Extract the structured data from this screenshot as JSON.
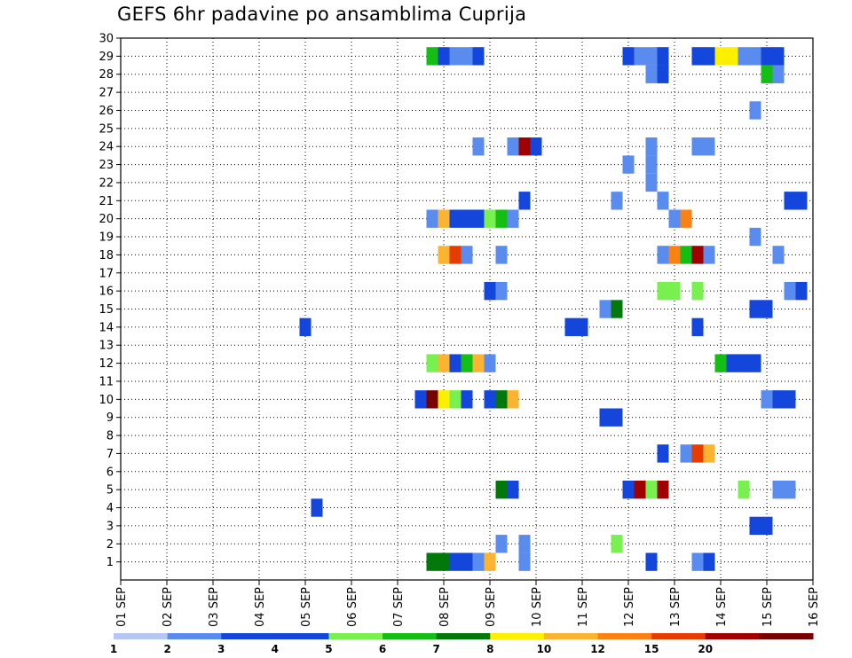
{
  "chart_data": {
    "type": "heatmap",
    "title": "GEFS 6hr padavine po ansamblima Cuprija",
    "x_ticks": [
      "01 SEP",
      "02 SEP",
      "03 SEP",
      "04 SEP",
      "05 SEP",
      "06 SEP",
      "07 SEP",
      "08 SEP",
      "09 SEP",
      "10 SEP",
      "11 SEP",
      "12 SEP",
      "13 SEP",
      "14 SEP",
      "15 SEP",
      "16 SEP"
    ],
    "y_ticks": [
      1,
      2,
      3,
      4,
      5,
      6,
      7,
      8,
      9,
      10,
      11,
      12,
      13,
      14,
      15,
      16,
      17,
      18,
      19,
      20,
      21,
      22,
      23,
      24,
      25,
      26,
      27,
      28,
      29,
      30
    ],
    "xlim": [
      "01 SEP 00h",
      "16 SEP 00h"
    ],
    "ylim": [
      0,
      30
    ],
    "grid": true,
    "legend": {
      "levels": [
        "1",
        "2",
        "3",
        "4",
        "5",
        "6",
        "7",
        "8",
        "10",
        "12",
        "15",
        "20"
      ],
      "colors": [
        "#b4c8f0",
        "#5a8cf0",
        "#1446dc",
        "#1446dc",
        "#78f050",
        "#14be14",
        "#00780a",
        "#faf000",
        "#fab432",
        "#fa8214",
        "#e63c00",
        "#a00000",
        "#780000"
      ]
    },
    "cells": [
      {
        "member": 29,
        "x": "07 SEP 18h",
        "class": 5
      },
      {
        "member": 29,
        "x": "08 SEP 00h",
        "class": 2
      },
      {
        "member": 29,
        "x": "08 SEP 06h",
        "class": 1
      },
      {
        "member": 29,
        "x": "08 SEP 12h",
        "class": 1
      },
      {
        "member": 29,
        "x": "08 SEP 18h",
        "class": 3
      },
      {
        "member": 29,
        "x": "12 SEP 00h",
        "class": 2
      },
      {
        "member": 29,
        "x": "12 SEP 06h",
        "class": 1
      },
      {
        "member": 29,
        "x": "12 SEP 12h",
        "class": 1
      },
      {
        "member": 29,
        "x": "12 SEP 18h",
        "class": 2
      },
      {
        "member": 29,
        "x": "13 SEP 12h",
        "class": 2
      },
      {
        "member": 29,
        "x": "13 SEP 18h",
        "class": 2
      },
      {
        "member": 29,
        "x": "14 SEP 00h",
        "class": 7
      },
      {
        "member": 29,
        "x": "14 SEP 06h",
        "class": 7
      },
      {
        "member": 29,
        "x": "14 SEP 12h",
        "class": 1
      },
      {
        "member": 29,
        "x": "14 SEP 18h",
        "class": 1
      },
      {
        "member": 29,
        "x": "15 SEP 00h",
        "class": 3
      },
      {
        "member": 29,
        "x": "15 SEP 06h",
        "class": 2
      },
      {
        "member": 28,
        "x": "12 SEP 12h",
        "class": 1
      },
      {
        "member": 28,
        "x": "12 SEP 18h",
        "class": 2
      },
      {
        "member": 28,
        "x": "15 SEP 00h",
        "class": 5
      },
      {
        "member": 28,
        "x": "15 SEP 06h",
        "class": 1
      },
      {
        "member": 26,
        "x": "14 SEP 18h",
        "class": 1
      },
      {
        "member": 24,
        "x": "08 SEP 18h",
        "class": 1
      },
      {
        "member": 24,
        "x": "09 SEP 12h",
        "class": 1
      },
      {
        "member": 24,
        "x": "09 SEP 18h",
        "class": 11
      },
      {
        "member": 24,
        "x": "10 SEP 00h",
        "class": 2
      },
      {
        "member": 24,
        "x": "12 SEP 12h",
        "class": 1
      },
      {
        "member": 24,
        "x": "13 SEP 12h",
        "class": 1
      },
      {
        "member": 24,
        "x": "13 SEP 18h",
        "class": 1
      },
      {
        "member": 23,
        "x": "12 SEP 00h",
        "class": 1
      },
      {
        "member": 23,
        "x": "12 SEP 12h",
        "class": 1
      },
      {
        "member": 22,
        "x": "12 SEP 12h",
        "class": 1
      },
      {
        "member": 21,
        "x": "09 SEP 18h",
        "class": 2
      },
      {
        "member": 21,
        "x": "11 SEP 18h",
        "class": 1
      },
      {
        "member": 21,
        "x": "12 SEP 18h",
        "class": 1
      },
      {
        "member": 21,
        "x": "15 SEP 12h",
        "class": 2
      },
      {
        "member": 21,
        "x": "15 SEP 18h",
        "class": 3
      },
      {
        "member": 20,
        "x": "07 SEP 18h",
        "class": 1
      },
      {
        "member": 20,
        "x": "08 SEP 00h",
        "class": 8
      },
      {
        "member": 20,
        "x": "08 SEP 06h",
        "class": 2
      },
      {
        "member": 20,
        "x": "08 SEP 12h",
        "class": 3
      },
      {
        "member": 20,
        "x": "08 SEP 18h",
        "class": 3
      },
      {
        "member": 20,
        "x": "09 SEP 00h",
        "class": 4
      },
      {
        "member": 20,
        "x": "09 SEP 06h",
        "class": 5
      },
      {
        "member": 20,
        "x": "09 SEP 12h",
        "class": 1
      },
      {
        "member": 20,
        "x": "13 SEP 00h",
        "class": 1
      },
      {
        "member": 20,
        "x": "13 SEP 06h",
        "class": 9
      },
      {
        "member": 19,
        "x": "14 SEP 18h",
        "class": 1
      },
      {
        "member": 18,
        "x": "08 SEP 00h",
        "class": 8
      },
      {
        "member": 18,
        "x": "08 SEP 06h",
        "class": 10
      },
      {
        "member": 18,
        "x": "08 SEP 12h",
        "class": 1
      },
      {
        "member": 18,
        "x": "09 SEP 06h",
        "class": 1
      },
      {
        "member": 18,
        "x": "12 SEP 18h",
        "class": 1
      },
      {
        "member": 18,
        "x": "13 SEP 00h",
        "class": 9
      },
      {
        "member": 18,
        "x": "13 SEP 06h",
        "class": 5
      },
      {
        "member": 18,
        "x": "13 SEP 12h",
        "class": 11
      },
      {
        "member": 18,
        "x": "13 SEP 18h",
        "class": 1
      },
      {
        "member": 18,
        "x": "15 SEP 06h",
        "class": 1
      },
      {
        "member": 16,
        "x": "09 SEP 00h",
        "class": 2
      },
      {
        "member": 16,
        "x": "09 SEP 06h",
        "class": 1
      },
      {
        "member": 16,
        "x": "12 SEP 18h",
        "class": 4
      },
      {
        "member": 16,
        "x": "13 SEP 00h",
        "class": 4
      },
      {
        "member": 16,
        "x": "13 SEP 12h",
        "class": 4
      },
      {
        "member": 16,
        "x": "15 SEP 12h",
        "class": 1
      },
      {
        "member": 16,
        "x": "15 SEP 18h",
        "class": 2
      },
      {
        "member": 15,
        "x": "11 SEP 12h",
        "class": 1
      },
      {
        "member": 15,
        "x": "11 SEP 18h",
        "class": 6
      },
      {
        "member": 15,
        "x": "14 SEP 18h",
        "class": 2
      },
      {
        "member": 15,
        "x": "15 SEP 00h",
        "class": 3
      },
      {
        "member": 14,
        "x": "05 SEP 00h",
        "class": 2
      },
      {
        "member": 14,
        "x": "10 SEP 18h",
        "class": 2
      },
      {
        "member": 14,
        "x": "11 SEP 00h",
        "class": 2
      },
      {
        "member": 14,
        "x": "13 SEP 12h",
        "class": 3
      },
      {
        "member": 12,
        "x": "07 SEP 18h",
        "class": 4
      },
      {
        "member": 12,
        "x": "08 SEP 00h",
        "class": 8
      },
      {
        "member": 12,
        "x": "08 SEP 06h",
        "class": 3
      },
      {
        "member": 12,
        "x": "08 SEP 12h",
        "class": 5
      },
      {
        "member": 12,
        "x": "08 SEP 18h",
        "class": 8
      },
      {
        "member": 12,
        "x": "09 SEP 00h",
        "class": 1
      },
      {
        "member": 12,
        "x": "14 SEP 00h",
        "class": 5
      },
      {
        "member": 12,
        "x": "14 SEP 06h",
        "class": 2
      },
      {
        "member": 12,
        "x": "14 SEP 12h",
        "class": 3
      },
      {
        "member": 12,
        "x": "14 SEP 18h",
        "class": 2
      },
      {
        "member": 10,
        "x": "07 SEP 12h",
        "class": 3
      },
      {
        "member": 10,
        "x": "07 SEP 18h",
        "class": 12
      },
      {
        "member": 10,
        "x": "08 SEP 00h",
        "class": 7
      },
      {
        "member": 10,
        "x": "08 SEP 06h",
        "class": 4
      },
      {
        "member": 10,
        "x": "08 SEP 12h",
        "class": 2
      },
      {
        "member": 10,
        "x": "09 SEP 00h",
        "class": 2
      },
      {
        "member": 10,
        "x": "09 SEP 06h",
        "class": 6
      },
      {
        "member": 10,
        "x": "09 SEP 12h",
        "class": 8
      },
      {
        "member": 10,
        "x": "15 SEP 00h",
        "class": 1
      },
      {
        "member": 10,
        "x": "15 SEP 06h",
        "class": 3
      },
      {
        "member": 10,
        "x": "15 SEP 12h",
        "class": 3
      },
      {
        "member": 9,
        "x": "11 SEP 12h",
        "class": 2
      },
      {
        "member": 9,
        "x": "11 SEP 18h",
        "class": 3
      },
      {
        "member": 7,
        "x": "12 SEP 18h",
        "class": 3
      },
      {
        "member": 7,
        "x": "13 SEP 06h",
        "class": 1
      },
      {
        "member": 7,
        "x": "13 SEP 12h",
        "class": 10
      },
      {
        "member": 7,
        "x": "13 SEP 18h",
        "class": 8
      },
      {
        "member": 5,
        "x": "09 SEP 06h",
        "class": 6
      },
      {
        "member": 5,
        "x": "09 SEP 12h",
        "class": 2
      },
      {
        "member": 5,
        "x": "12 SEP 00h",
        "class": 3
      },
      {
        "member": 5,
        "x": "12 SEP 06h",
        "class": 11
      },
      {
        "member": 5,
        "x": "12 SEP 12h",
        "class": 4
      },
      {
        "member": 5,
        "x": "12 SEP 18h",
        "class": 11
      },
      {
        "member": 5,
        "x": "14 SEP 12h",
        "class": 4
      },
      {
        "member": 5,
        "x": "15 SEP 06h",
        "class": 1
      },
      {
        "member": 5,
        "x": "15 SEP 12h",
        "class": 1
      },
      {
        "member": 4,
        "x": "05 SEP 06h",
        "class": 2
      },
      {
        "member": 3,
        "x": "14 SEP 18h",
        "class": 2
      },
      {
        "member": 3,
        "x": "15 SEP 00h",
        "class": 2
      },
      {
        "member": 2,
        "x": "09 SEP 06h",
        "class": 1
      },
      {
        "member": 2,
        "x": "09 SEP 18h",
        "class": 1
      },
      {
        "member": 2,
        "x": "11 SEP 18h",
        "class": 4
      },
      {
        "member": 1,
        "x": "07 SEP 18h",
        "class": 6
      },
      {
        "member": 1,
        "x": "08 SEP 00h",
        "class": 6
      },
      {
        "member": 1,
        "x": "08 SEP 06h",
        "class": 3
      },
      {
        "member": 1,
        "x": "08 SEP 12h",
        "class": 3
      },
      {
        "member": 1,
        "x": "08 SEP 18h",
        "class": 1
      },
      {
        "member": 1,
        "x": "09 SEP 00h",
        "class": 8
      },
      {
        "member": 1,
        "x": "09 SEP 18h",
        "class": 1
      },
      {
        "member": 1,
        "x": "12 SEP 12h",
        "class": 3
      },
      {
        "member": 1,
        "x": "13 SEP 12h",
        "class": 1
      },
      {
        "member": 1,
        "x": "13 SEP 18h",
        "class": 2
      }
    ]
  }
}
